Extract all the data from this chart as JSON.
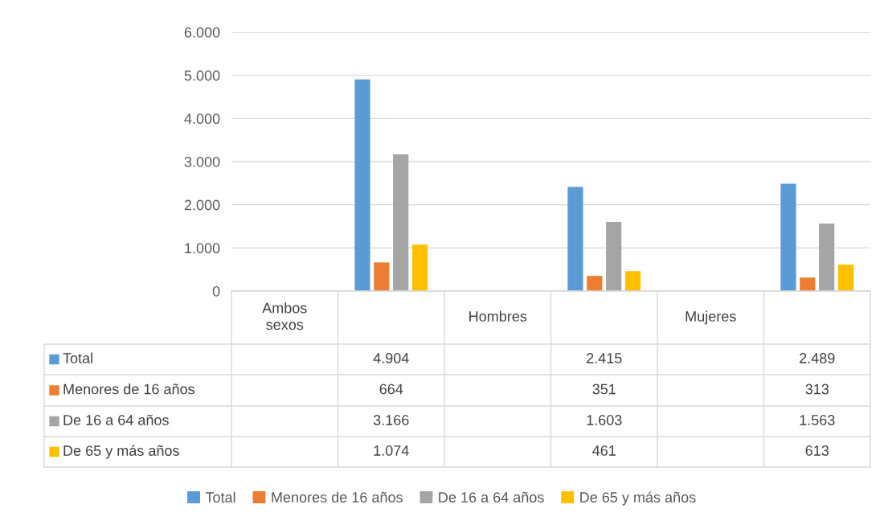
{
  "chart_data": {
    "type": "bar",
    "categories": [
      "Ambos sexos",
      null,
      "Hombres",
      null,
      "Mujeres",
      null
    ],
    "series": [
      {
        "name": "Total",
        "color": "#5b9bd5",
        "values": [
          null,
          4904,
          null,
          2415,
          null,
          2489
        ],
        "value_labels": [
          null,
          "4.904",
          null,
          "2.415",
          null,
          "2.489"
        ]
      },
      {
        "name": "Menores de 16 años",
        "color": "#ed7d31",
        "values": [
          null,
          664,
          null,
          351,
          null,
          313
        ],
        "value_labels": [
          null,
          "664",
          null,
          "351",
          null,
          "313"
        ]
      },
      {
        "name": "De 16 a 64 años",
        "color": "#a5a5a5",
        "values": [
          null,
          3166,
          null,
          1603,
          null,
          1563
        ],
        "value_labels": [
          null,
          "3.166",
          null,
          "1.603",
          null,
          "1.563"
        ]
      },
      {
        "name": "De 65 y más años",
        "color": "#ffc000",
        "values": [
          null,
          1074,
          null,
          461,
          null,
          613
        ],
        "value_labels": [
          null,
          "1.074",
          null,
          "461",
          null,
          "613"
        ]
      }
    ],
    "ylim": [
      0,
      6000
    ],
    "yticks": [
      {
        "value": 0,
        "label": "0"
      },
      {
        "value": 1000,
        "label": "1.000"
      },
      {
        "value": 2000,
        "label": "2.000"
      },
      {
        "value": 3000,
        "label": "3.000"
      },
      {
        "value": 4000,
        "label": "4.000"
      },
      {
        "value": 5000,
        "label": "5.000"
      },
      {
        "value": 6000,
        "label": "6.000"
      }
    ],
    "grid": "y",
    "legend": "bottom"
  }
}
